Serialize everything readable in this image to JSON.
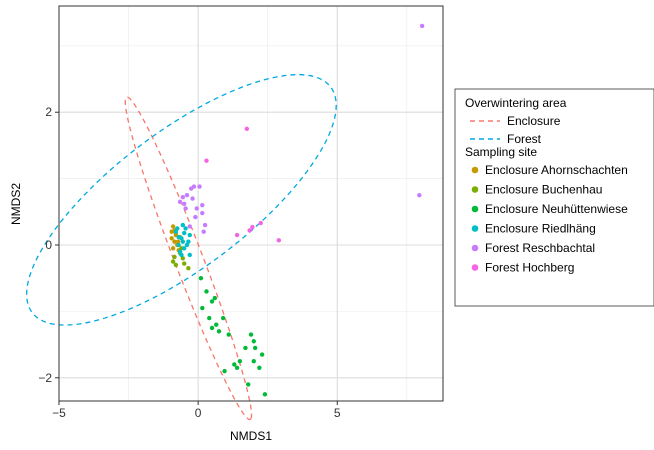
{
  "chart_data": {
    "type": "scatter",
    "xlabel": "NMDS1",
    "ylabel": "NMDS2",
    "xlim": [
      -5,
      8.8
    ],
    "ylim": [
      -2.35,
      3.6
    ],
    "xticks": [
      -5,
      0,
      5
    ],
    "yticks": [
      -2,
      0,
      2
    ],
    "xtick_labels": [
      "−5",
      "0",
      "5"
    ],
    "ytick_labels": [
      "−2",
      "0",
      "2"
    ],
    "grid": true,
    "legend": {
      "placement": "right",
      "ellipse_title": "Overwintering area",
      "ellipse_entries": [
        {
          "label": "Enclosure",
          "color": "#F8766D"
        },
        {
          "label": "Forest",
          "color": "#00A9E0"
        }
      ],
      "point_title": "Sampling site"
    },
    "ellipses": [
      {
        "name": "Enclosure",
        "color": "#F8766D",
        "cx": -0.35,
        "cy": -0.2,
        "a": 3.3,
        "b": 0.4,
        "angle_deg": -47
      },
      {
        "name": "Forest",
        "color": "#00A9E0",
        "cx": -0.6,
        "cy": 0.68,
        "a": 5.75,
        "b": 1.2,
        "angle_deg": 15
      }
    ],
    "series": [
      {
        "name": "Enclosure Ahornschachten",
        "color": "#C49A00",
        "points": [
          [
            -0.9,
            0.28
          ],
          [
            -0.85,
            0.22
          ],
          [
            -0.8,
            0.15
          ],
          [
            -0.95,
            0.1
          ],
          [
            -0.85,
            0.05
          ],
          [
            -0.75,
            0.0
          ],
          [
            -0.9,
            -0.05
          ],
          [
            -0.7,
            -0.08
          ],
          [
            -0.8,
            0.18
          ],
          [
            -0.65,
            0.12
          ],
          [
            -0.95,
            0.2
          ],
          [
            -0.72,
            0.05
          ]
        ]
      },
      {
        "name": "Enclosure Buchenhau",
        "color": "#7CAE00",
        "points": [
          [
            -0.9,
            -0.25
          ],
          [
            -0.8,
            -0.3
          ],
          [
            -0.55,
            -0.2
          ],
          [
            -0.35,
            -0.35
          ],
          [
            -0.65,
            -0.12
          ],
          [
            -0.85,
            -0.18
          ],
          [
            -0.5,
            -0.28
          ],
          [
            -0.6,
            -0.05
          ]
        ]
      },
      {
        "name": "Enclosure Neuhüttenwiese",
        "color": "#00BA38",
        "points": [
          [
            0.1,
            -0.5
          ],
          [
            0.3,
            -0.7
          ],
          [
            0.5,
            -0.85
          ],
          [
            0.15,
            -0.95
          ],
          [
            0.9,
            -1.1
          ],
          [
            0.4,
            -1.1
          ],
          [
            0.5,
            -1.25
          ],
          [
            0.65,
            -1.2
          ],
          [
            0.75,
            -1.3
          ],
          [
            1.1,
            -1.35
          ],
          [
            1.5,
            -1.75
          ],
          [
            1.3,
            -1.8
          ],
          [
            1.7,
            -1.55
          ],
          [
            1.9,
            -1.35
          ],
          [
            2.0,
            -1.45
          ],
          [
            2.0,
            -1.75
          ],
          [
            2.2,
            -1.85
          ],
          [
            2.3,
            -1.65
          ],
          [
            1.4,
            -1.85
          ],
          [
            0.95,
            -1.9
          ],
          [
            1.8,
            -2.1
          ],
          [
            2.4,
            -2.25
          ],
          [
            2.05,
            -1.55
          ],
          [
            0.6,
            -0.8
          ]
        ]
      },
      {
        "name": "Enclosure Riedlhäng",
        "color": "#00BFC4",
        "points": [
          [
            -0.75,
            0.25
          ],
          [
            -0.6,
            0.1
          ],
          [
            -0.55,
            0.05
          ],
          [
            -0.7,
            0.0
          ],
          [
            -0.5,
            -0.05
          ],
          [
            -0.8,
            0.2
          ],
          [
            -0.45,
            0.25
          ],
          [
            -0.3,
            0.15
          ],
          [
            -0.65,
            -0.1
          ],
          [
            -0.4,
            0.0
          ],
          [
            -0.55,
            0.3
          ],
          [
            -0.7,
            0.12
          ],
          [
            -0.5,
            0.18
          ],
          [
            -0.3,
            -0.15
          ],
          [
            -0.6,
            -0.15
          ],
          [
            -0.35,
            0.05
          ]
        ]
      },
      {
        "name": "Forest Reschbachtal",
        "color": "#C77CFF",
        "points": [
          [
            -0.65,
            0.65
          ],
          [
            -0.55,
            0.72
          ],
          [
            -0.4,
            0.75
          ],
          [
            -0.5,
            0.62
          ],
          [
            -0.15,
            0.88
          ],
          [
            0.05,
            0.88
          ],
          [
            -0.2,
            0.7
          ],
          [
            0.15,
            0.6
          ],
          [
            -0.05,
            0.55
          ],
          [
            0.15,
            0.48
          ],
          [
            -0.1,
            0.42
          ],
          [
            0.25,
            0.3
          ],
          [
            -0.45,
            0.55
          ],
          [
            -0.3,
            0.28
          ],
          [
            0.2,
            0.2
          ],
          [
            -0.25,
            0.85
          ],
          [
            8.05,
            3.3
          ],
          [
            7.95,
            0.75
          ]
        ]
      },
      {
        "name": "Forest Hochberg",
        "color": "#F564E3",
        "points": [
          [
            1.75,
            1.75
          ],
          [
            0.3,
            1.27
          ],
          [
            1.4,
            0.15
          ],
          [
            1.85,
            0.22
          ],
          [
            2.25,
            0.33
          ],
          [
            2.9,
            0.07
          ],
          [
            1.95,
            0.27
          ]
        ]
      }
    ]
  }
}
